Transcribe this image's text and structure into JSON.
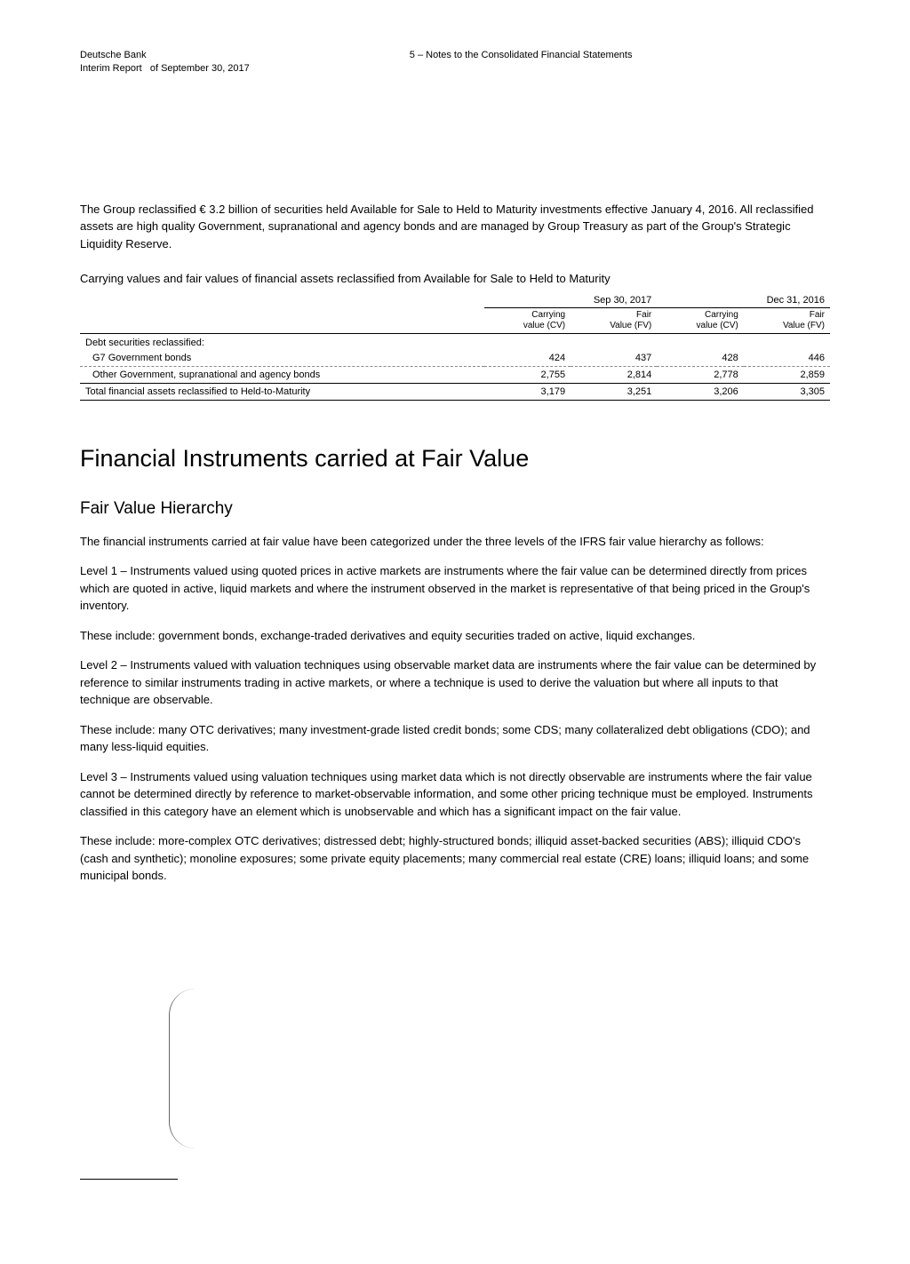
{
  "header": {
    "company": "Deutsche Bank",
    "report_line": "Interim Report   of September 30, 2017",
    "section": "5 – Notes to the Consolidated Financial Statements"
  },
  "intro": "The Group reclassified € 3.2 billion of securities held Available for Sale to Held to Maturity investments effective January 4, 2016. All reclassified assets are high quality Government, supranational and agency bonds and are managed by Group Treasury as part of the Group's Strategic Liquidity Reserve.",
  "table": {
    "caption": "Carrying values and fair values of financial assets reclassified from Available for Sale to Held to Maturity",
    "period1": "Sep 30, 2017",
    "period2": "Dec 31, 2016",
    "col_headers": {
      "cv1_a": "Carrying",
      "cv1_b": "value (CV)",
      "fv1_a": "Fair",
      "fv1_b": "Value (FV)",
      "cv2_a": "Carrying",
      "cv2_b": "value (CV)",
      "fv2_a": "Fair",
      "fv2_b": "Value (FV)"
    },
    "subhead": "Debt securities reclassified:",
    "rows": [
      {
        "label": "G7 Government bonds",
        "cv1": "424",
        "fv1": "437",
        "cv2": "428",
        "fv2": "446"
      },
      {
        "label": "Other Government, supranational and agency bonds",
        "cv1": "2,755",
        "fv1": "2,814",
        "cv2": "2,778",
        "fv2": "2,859"
      }
    ],
    "total": {
      "label": "Total financial assets reclassified to Held-to-Maturity",
      "cv1": "3,179",
      "fv1": "3,251",
      "cv2": "3,206",
      "fv2": "3,305"
    }
  },
  "section_title": "Financial Instruments carried at Fair Value",
  "sub_title": "Fair Value Hierarchy",
  "paras": {
    "p1": "The financial instruments carried at fair value have been categorized under the three levels of the IFRS fair value hierarchy as follows:",
    "p2": "Level 1 – Instruments valued using quoted prices in active markets are instruments where the fair value can be determined directly from prices which are quoted in active, liquid markets and where the instrument observed in the market is representative of that being priced in the Group's inventory.",
    "p3": "These include: government bonds, exchange-traded derivatives and equity securities traded on active, liquid exchanges.",
    "p4": "Level 2 – Instruments valued with valuation techniques using observable market data are instruments where the fair value can be determined by reference to similar instruments trading in active markets, or where a technique is used to derive the valuation but where all inputs to that technique are observable.",
    "p5": "These include: many OTC derivatives; many investment-grade listed credit bonds; some CDS; many collateralized debt obligations (CDO); and many less-liquid equities.",
    "p6": "Level 3 – Instruments valued using valuation techniques using market data which is not directly observable are instruments where the fair value cannot be determined directly by reference to market-observable information, and some other pricing technique must be employed. Instruments classified in this category have an element which is unobservable and which has a significant impact on the fair value.",
    "p7": "These include: more-complex OTC derivatives; distressed debt; highly-structured bonds; illiquid asset-backed securities (ABS); illiquid CDO's (cash and synthetic); monoline exposures; some private equity placements; many commercial real estate (CRE) loans; illiquid loans; and some municipal bonds."
  }
}
